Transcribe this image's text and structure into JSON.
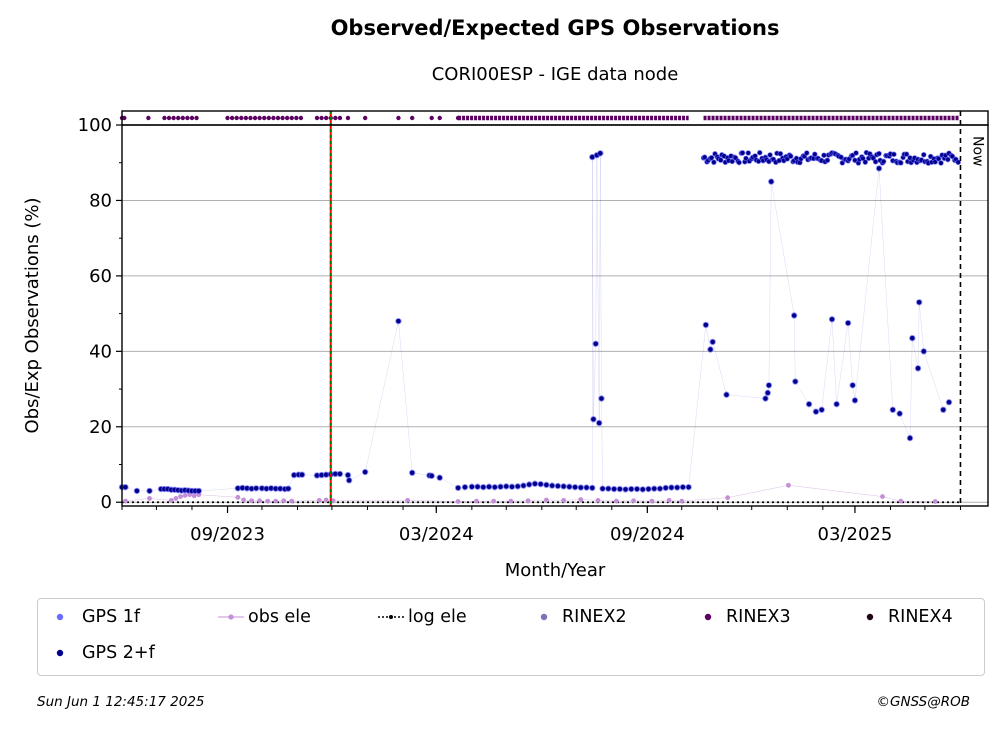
{
  "title": "Observed/Expected GPS Observations",
  "subtitle": "CORI00ESP - IGE data node",
  "footer": {
    "timestamp": "Sun Jun  1 12:45:17 2025",
    "credit": "©GNSS@ROB"
  },
  "colors": {
    "gps1f": "#6b6bff",
    "gps2f": "#00008b",
    "obs_ele": "#c38fd6",
    "log_ele": "#000000",
    "rinex2": "#7b72b8",
    "rinex3": "#5c0062",
    "rinex4": "#1f0616",
    "vline": "#ff0000",
    "vline2": "#008000"
  },
  "chart_data": {
    "type": "scatter",
    "xlabel": "Month/Year",
    "ylabel": "Obs/Exp Observations (%)",
    "xlim": [
      "2023-06-01",
      "2025-06-25"
    ],
    "ylim": [
      -1,
      100
    ],
    "yticks": [
      0,
      20,
      40,
      60,
      80,
      100
    ],
    "xticks": [
      {
        "date": "2023-09-01",
        "label": "09/2023"
      },
      {
        "date": "2024-03-01",
        "label": "03/2024"
      },
      {
        "date": "2024-09-01",
        "label": "09/2024"
      },
      {
        "date": "2025-03-01",
        "label": "03/2025"
      }
    ],
    "grid": "y",
    "now_marker": {
      "date": "2025-06-01",
      "label": "Now"
    },
    "event_line": {
      "date": "2023-11-30"
    },
    "legend_position": "bottom",
    "legend": [
      "GPS 1f",
      "obs ele",
      "log ele",
      "RINEX2",
      "RINEX3",
      "RINEX4",
      "GPS 2+f"
    ],
    "series": [
      {
        "name": "GPS 2+f",
        "kind": "points",
        "points": [
          [
            "2023-06-01",
            4
          ],
          [
            "2023-06-04",
            4
          ],
          [
            "2023-06-14",
            3
          ],
          [
            "2023-06-25",
            3
          ],
          [
            "2023-07-05",
            3.5
          ],
          [
            "2023-07-08",
            3.5
          ],
          [
            "2023-07-11",
            3.5
          ],
          [
            "2023-07-14",
            3.3
          ],
          [
            "2023-07-17",
            3.3
          ],
          [
            "2023-07-20",
            3.2
          ],
          [
            "2023-07-23",
            3.1
          ],
          [
            "2023-07-26",
            3.2
          ],
          [
            "2023-07-29",
            3.1
          ],
          [
            "2023-08-01",
            3
          ],
          [
            "2023-08-04",
            3
          ],
          [
            "2023-08-07",
            3
          ],
          [
            "2023-09-10",
            3.7
          ],
          [
            "2023-09-14",
            3.8
          ],
          [
            "2023-09-18",
            3.7
          ],
          [
            "2023-09-22",
            3.6
          ],
          [
            "2023-09-26",
            3.7
          ],
          [
            "2023-10-01",
            3.7
          ],
          [
            "2023-10-05",
            3.6
          ],
          [
            "2023-10-09",
            3.7
          ],
          [
            "2023-10-13",
            3.6
          ],
          [
            "2023-10-17",
            3.6
          ],
          [
            "2023-10-21",
            3.5
          ],
          [
            "2023-10-24",
            3.6
          ],
          [
            "2023-10-29",
            7.2
          ],
          [
            "2023-11-02",
            7.3
          ],
          [
            "2023-11-05",
            7.3
          ],
          [
            "2023-11-18",
            7.1
          ],
          [
            "2023-11-22",
            7.2
          ],
          [
            "2023-11-26",
            7.3
          ],
          [
            "2023-11-30",
            7.4
          ],
          [
            "2023-12-04",
            7.5
          ],
          [
            "2023-12-08",
            7.5
          ],
          [
            "2023-12-15",
            7.2
          ],
          [
            "2023-12-16",
            5.8
          ],
          [
            "2023-12-30",
            8
          ],
          [
            "2024-01-28",
            48
          ],
          [
            "2024-02-09",
            7.8
          ],
          [
            "2024-02-24",
            7.1
          ],
          [
            "2024-02-26",
            7
          ],
          [
            "2024-03-04",
            6.5
          ],
          [
            "2024-03-20",
            3.8
          ],
          [
            "2024-03-26",
            4
          ],
          [
            "2024-04-01",
            4.1
          ],
          [
            "2024-04-06",
            4.1
          ],
          [
            "2024-04-11",
            4
          ],
          [
            "2024-04-16",
            4.1
          ],
          [
            "2024-04-21",
            4
          ],
          [
            "2024-04-26",
            4.1
          ],
          [
            "2024-05-01",
            4.2
          ],
          [
            "2024-05-06",
            4.1
          ],
          [
            "2024-05-11",
            4.2
          ],
          [
            "2024-05-16",
            4.4
          ],
          [
            "2024-05-21",
            4.7
          ],
          [
            "2024-05-26",
            4.9
          ],
          [
            "2024-05-31",
            4.8
          ],
          [
            "2024-06-05",
            4.6
          ],
          [
            "2024-06-10",
            4.4
          ],
          [
            "2024-06-15",
            4.3
          ],
          [
            "2024-06-20",
            4.2
          ],
          [
            "2024-06-25",
            4.1
          ],
          [
            "2024-06-30",
            4.0
          ],
          [
            "2024-07-05",
            3.9
          ],
          [
            "2024-07-10",
            3.9
          ],
          [
            "2024-07-15",
            3.8
          ],
          [
            "2024-07-15",
            91.5
          ],
          [
            "2024-07-16",
            22
          ],
          [
            "2024-07-18",
            42
          ],
          [
            "2024-07-19",
            92
          ],
          [
            "2024-07-21",
            21
          ],
          [
            "2024-07-22",
            92.5
          ],
          [
            "2024-07-23",
            27.5
          ],
          [
            "2024-07-24",
            3.6
          ],
          [
            "2024-07-29",
            3.6
          ],
          [
            "2024-08-03",
            3.5
          ],
          [
            "2024-08-08",
            3.5
          ],
          [
            "2024-08-13",
            3.4
          ],
          [
            "2024-08-18",
            3.5
          ],
          [
            "2024-08-23",
            3.5
          ],
          [
            "2024-08-28",
            3.4
          ],
          [
            "2024-09-02",
            3.5
          ],
          [
            "2024-09-07",
            3.6
          ],
          [
            "2024-09-12",
            3.6
          ],
          [
            "2024-09-17",
            3.8
          ],
          [
            "2024-09-22",
            3.9
          ],
          [
            "2024-09-27",
            3.9
          ],
          [
            "2024-10-02",
            4
          ],
          [
            "2024-10-07",
            4
          ],
          [
            "2024-10-22",
            47
          ],
          [
            "2024-10-26",
            40.5
          ],
          [
            "2024-10-28",
            42.5
          ],
          [
            "2024-11-09",
            28.5
          ],
          [
            "2024-12-13",
            27.5
          ],
          [
            "2024-12-15",
            29
          ],
          [
            "2024-12-16",
            31
          ],
          [
            "2024-12-18",
            85
          ],
          [
            "2025-01-07",
            49.5
          ],
          [
            "2025-01-08",
            32
          ],
          [
            "2025-01-20",
            26
          ],
          [
            "2025-01-26",
            24
          ],
          [
            "2025-01-31",
            24.5
          ],
          [
            "2025-02-09",
            48.5
          ],
          [
            "2025-02-13",
            26
          ],
          [
            "2025-02-23",
            47.5
          ],
          [
            "2025-02-27",
            31
          ],
          [
            "2025-03-01",
            27
          ],
          [
            "2025-03-22",
            88.5
          ],
          [
            "2025-04-03",
            24.5
          ],
          [
            "2025-04-09",
            23.5
          ],
          [
            "2025-04-18",
            17
          ],
          [
            "2025-04-20",
            43.5
          ],
          [
            "2025-04-26",
            53
          ],
          [
            "2025-04-25",
            35.5
          ],
          [
            "2025-04-30",
            40
          ],
          [
            "2025-05-17",
            24.5
          ],
          [
            "2025-05-22",
            26.5
          ]
        ]
      },
      {
        "name": "GPS 2+f",
        "kind": "band",
        "from": "2024-10-20",
        "to": "2025-05-31",
        "level": 91.3,
        "spread": 1.4
      },
      {
        "name": "obs ele",
        "kind": "points",
        "points": [
          [
            "2023-06-04",
            0.3
          ],
          [
            "2023-06-25",
            1
          ],
          [
            "2023-07-14",
            0.5
          ],
          [
            "2023-07-18",
            1
          ],
          [
            "2023-07-22",
            1.5
          ],
          [
            "2023-07-26",
            1.8
          ],
          [
            "2023-07-30",
            2
          ],
          [
            "2023-08-03",
            1.7
          ],
          [
            "2023-08-07",
            2
          ],
          [
            "2023-09-10",
            1.3
          ],
          [
            "2023-09-15",
            0.6
          ],
          [
            "2023-09-22",
            0.4
          ],
          [
            "2023-09-29",
            0.4
          ],
          [
            "2023-10-06",
            0.3
          ],
          [
            "2023-10-13",
            0.3
          ],
          [
            "2023-10-20",
            0.4
          ],
          [
            "2023-10-27",
            0.3
          ],
          [
            "2023-11-20",
            0.5
          ],
          [
            "2023-11-26",
            0.6
          ],
          [
            "2023-12-02",
            0.4
          ],
          [
            "2024-02-05",
            0.5
          ],
          [
            "2024-03-20",
            0.2
          ],
          [
            "2024-04-05",
            0.3
          ],
          [
            "2024-04-20",
            0.3
          ],
          [
            "2024-05-05",
            0.3
          ],
          [
            "2024-05-20",
            0.4
          ],
          [
            "2024-06-05",
            0.6
          ],
          [
            "2024-06-20",
            0.5
          ],
          [
            "2024-07-05",
            0.7
          ],
          [
            "2024-07-20",
            0.5
          ],
          [
            "2024-08-05",
            0.3
          ],
          [
            "2024-08-20",
            0.4
          ],
          [
            "2024-09-05",
            0.3
          ],
          [
            "2024-09-20",
            0.5
          ],
          [
            "2024-10-01",
            0.3
          ],
          [
            "2024-11-10",
            1.2
          ],
          [
            "2025-01-02",
            4.5
          ],
          [
            "2025-03-25",
            1.5
          ],
          [
            "2025-04-10",
            0.3
          ],
          [
            "2025-05-10",
            0.2
          ]
        ]
      },
      {
        "name": "log ele",
        "kind": "line",
        "value": 0
      },
      {
        "name": "RINEX3",
        "kind": "top_strip",
        "points": [
          "2023-06-01",
          "2023-06-03",
          "2023-06-24",
          "2023-07-08",
          "2023-07-12",
          "2023-07-16",
          "2023-07-20",
          "2023-07-24",
          "2023-07-28",
          "2023-08-01",
          "2023-08-05",
          "2023-09-01",
          "2023-09-05",
          "2023-09-09",
          "2023-09-13",
          "2023-09-17",
          "2023-09-21",
          "2023-09-25",
          "2023-09-29",
          "2023-10-03",
          "2023-10-07",
          "2023-10-11",
          "2023-10-15",
          "2023-10-19",
          "2023-10-23",
          "2023-10-27",
          "2023-10-31",
          "2023-11-04",
          "2023-11-18",
          "2023-11-22",
          "2023-11-26",
          "2023-11-30",
          "2023-12-04",
          "2023-12-08",
          "2023-12-15",
          "2023-12-30",
          "2024-01-28",
          "2024-02-09",
          "2024-02-26",
          "2024-03-04",
          "2024-03-20"
        ],
        "ranges": [
          [
            "2024-03-20",
            "2024-10-07"
          ],
          [
            "2024-10-20",
            "2025-05-31"
          ]
        ]
      }
    ]
  }
}
